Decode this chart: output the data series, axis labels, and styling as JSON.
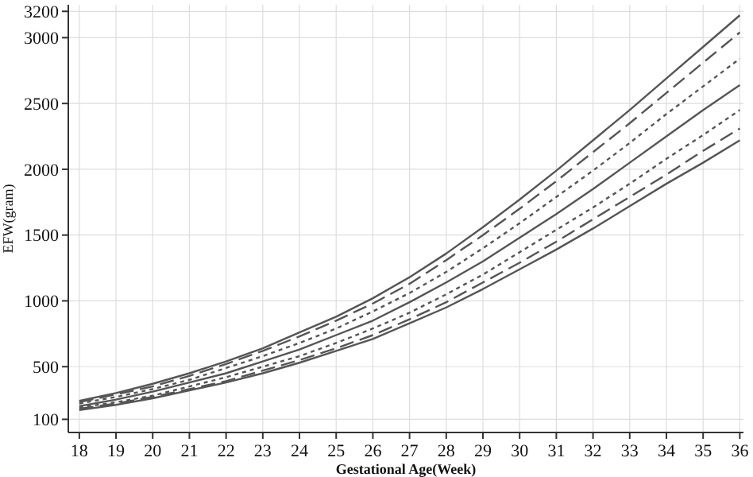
{
  "chart_data": {
    "type": "line",
    "xlabel": "Gestational Age(Week)",
    "ylabel": "EFW(gram)",
    "x": [
      18,
      19,
      20,
      21,
      22,
      23,
      24,
      25,
      26,
      27,
      28,
      29,
      30,
      31,
      32,
      33,
      34,
      35,
      36
    ],
    "xlim": [
      17.7,
      36.1
    ],
    "xticks": [
      18,
      19,
      20,
      21,
      22,
      23,
      24,
      25,
      26,
      27,
      28,
      29,
      30,
      31,
      32,
      33,
      34,
      35,
      36
    ],
    "ylim": [
      0,
      3250
    ],
    "yticks": [
      100,
      500,
      1000,
      1500,
      2000,
      2500,
      3000,
      3200
    ],
    "grid": true,
    "marker": "none",
    "series": [
      {
        "color": "#555555",
        "line_style": "solid",
        "values": [
          240,
          300,
          370,
          450,
          540,
          640,
          760,
          880,
          1020,
          1180,
          1360,
          1560,
          1770,
          1990,
          2220,
          2450,
          2690,
          2930,
          3170
        ]
      },
      {
        "color": "#555555",
        "line_style": "dashed",
        "values": [
          230,
          290,
          350,
          430,
          520,
          620,
          730,
          850,
          980,
          1130,
          1310,
          1500,
          1700,
          1910,
          2130,
          2350,
          2580,
          2810,
          3040
        ]
      },
      {
        "color": "#555555",
        "line_style": "dotted",
        "values": [
          220,
          270,
          330,
          400,
          490,
          580,
          680,
          790,
          920,
          1060,
          1220,
          1400,
          1590,
          1790,
          1990,
          2200,
          2420,
          2630,
          2840
        ]
      },
      {
        "color": "#555555",
        "line_style": "solid",
        "values": [
          200,
          250,
          310,
          380,
          450,
          540,
          630,
          740,
          850,
          990,
          1140,
          1300,
          1480,
          1660,
          1850,
          2050,
          2250,
          2450,
          2640
        ]
      },
      {
        "color": "#555555",
        "line_style": "dotted",
        "values": [
          190,
          230,
          280,
          350,
          420,
          500,
          580,
          680,
          790,
          910,
          1050,
          1200,
          1370,
          1540,
          1710,
          1890,
          2080,
          2260,
          2450
        ]
      },
      {
        "color": "#555555",
        "line_style": "dashed",
        "values": [
          180,
          220,
          270,
          330,
          390,
          470,
          550,
          640,
          740,
          860,
          990,
          1140,
          1290,
          1450,
          1620,
          1790,
          1960,
          2140,
          2310
        ]
      },
      {
        "color": "#555555",
        "line_style": "solid",
        "values": [
          170,
          210,
          260,
          320,
          380,
          450,
          530,
          620,
          710,
          830,
          950,
          1090,
          1240,
          1390,
          1550,
          1720,
          1890,
          2050,
          2220
        ]
      }
    ]
  }
}
